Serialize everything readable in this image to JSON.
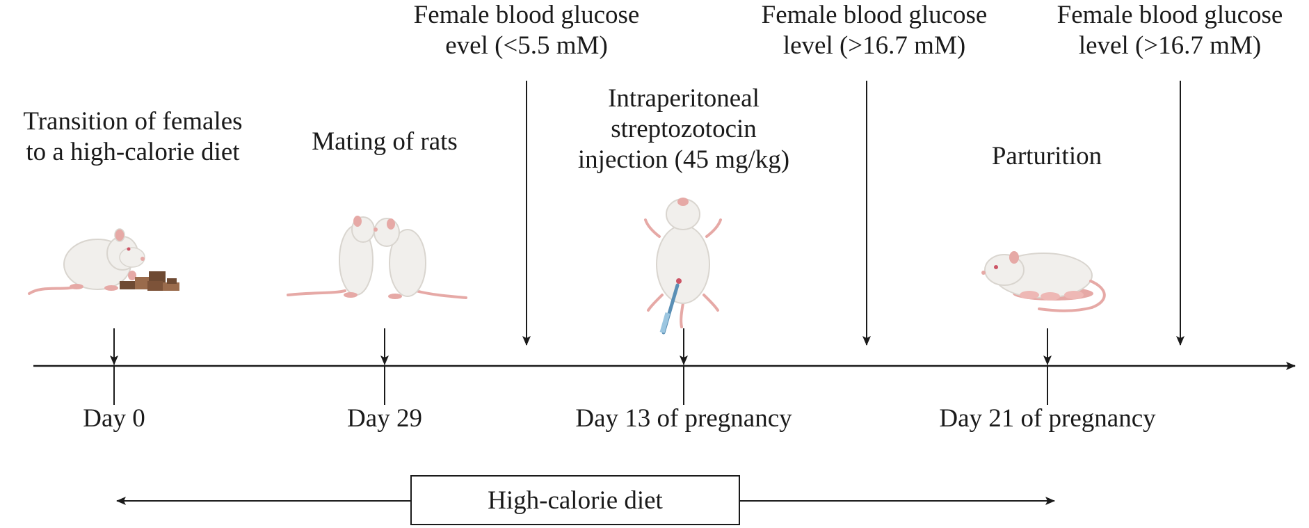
{
  "events": {
    "diet_transition": [
      "Transition of females",
      "to a high-calorie diet"
    ],
    "mating": [
      "Mating of rats"
    ],
    "glucose_1": [
      "Female blood glucose",
      "evel (<5.5 mM)"
    ],
    "injection": [
      "Intraperitoneal",
      "streptozotocin",
      "injection (45 mg/kg)"
    ],
    "glucose_2": [
      "Female blood glucose",
      "level (>16.7 mM)"
    ],
    "parturition": [
      "Parturition"
    ],
    "glucose_3": [
      "Female blood glucose",
      "level (>16.7 mM)"
    ]
  },
  "days": {
    "day0": "Day 0",
    "day29": "Day 29",
    "day13": "Day 13 of pregnancy",
    "day21": "Day 21 of pregnancy"
  },
  "diet_period": {
    "label": "High-calorie diet"
  },
  "colors": {
    "line": "#1a1a1a",
    "rat_fur": "#f1efec",
    "rat_shade": "#d9d5cf",
    "rat_pink": "#e6a9a6",
    "food": "#6e4a33",
    "food_light": "#9a6b4c"
  },
  "icons": [
    "rat-eating-icon",
    "mating-rats-icon",
    "injected-rat-icon",
    "rat-with-pups-icon"
  ]
}
